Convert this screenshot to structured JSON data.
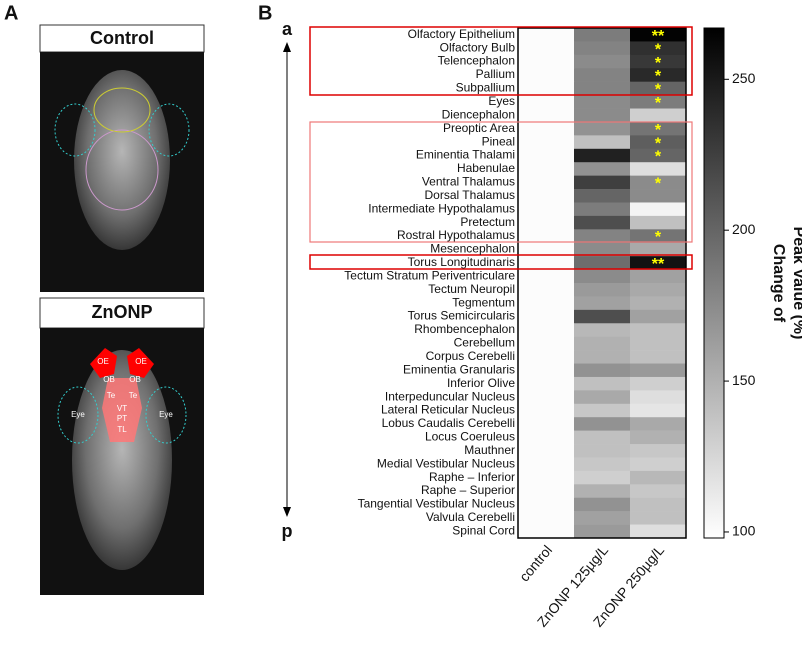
{
  "panel_labels": [
    "A",
    "B"
  ],
  "panel_a": {
    "images": [
      {
        "title": "Control"
      },
      {
        "title": "ZnONP",
        "labels": [
          "OE",
          "OE",
          "OB",
          "OB",
          "Te",
          "Te",
          "VT",
          "PT",
          "TL",
          "Eye",
          "Eye"
        ]
      }
    ]
  },
  "chart_data": {
    "type": "heatmap",
    "axis_labels": {
      "top": "a",
      "bottom": "p"
    },
    "columns": [
      "control",
      "ZnONP 125µg/L",
      "ZnONP 250µg/L"
    ],
    "rows": [
      "Olfactory Epithelium",
      "Olfactory Bulb",
      "Telencephalon",
      "Pallium",
      "Subpallium",
      "Eyes",
      "Diencephalon",
      "Preoptic Area",
      "Pineal",
      "Eminentia Thalami",
      "Habenulae",
      "Ventral Thalamus",
      "Dorsal Thalamus",
      "Intermediate Hypothalamus",
      "Pretectum",
      "Rostral Hypothalamus",
      "Mesencephalon",
      "Torus Longitudinaris",
      "Tectum Stratum Periventriculare",
      "Tectum Neuropil",
      "Tegmentum",
      "Torus Semicircularis",
      "Rhombencephalon",
      "Cerebellum",
      "Corpus Cerebelli",
      "Eminentia Granularis",
      "Inferior Olive",
      "Interpeduncular Nucleus",
      "Lateral Reticular Nucleus",
      "Lobus Caudalis Cerebelli",
      "Locus Coeruleus",
      "Mauthner",
      "Medial Vestibular Nucleus",
      "Raphe – Inferior",
      "Raphe – Superior",
      "Tangential Vestibular Nucleus",
      "Valvula Cerebelli",
      "Spinal Cord"
    ],
    "values": [
      [
        100,
        185,
        265
      ],
      [
        100,
        180,
        235
      ],
      [
        100,
        175,
        230
      ],
      [
        100,
        180,
        240
      ],
      [
        100,
        180,
        200
      ],
      [
        100,
        175,
        185
      ],
      [
        100,
        175,
        130
      ],
      [
        100,
        170,
        190
      ],
      [
        100,
        140,
        205
      ],
      [
        100,
        245,
        200
      ],
      [
        100,
        170,
        120
      ],
      [
        100,
        225,
        175
      ],
      [
        100,
        200,
        175
      ],
      [
        100,
        185,
        105
      ],
      [
        100,
        215,
        140
      ],
      [
        100,
        180,
        190
      ],
      [
        100,
        175,
        155
      ],
      [
        100,
        195,
        255
      ],
      [
        100,
        175,
        160
      ],
      [
        100,
        165,
        155
      ],
      [
        100,
        160,
        150
      ],
      [
        100,
        215,
        160
      ],
      [
        100,
        145,
        140
      ],
      [
        100,
        150,
        140
      ],
      [
        100,
        150,
        140
      ],
      [
        100,
        170,
        165
      ],
      [
        100,
        140,
        130
      ],
      [
        100,
        155,
        120
      ],
      [
        100,
        135,
        115
      ],
      [
        100,
        170,
        155
      ],
      [
        100,
        140,
        150
      ],
      [
        100,
        140,
        135
      ],
      [
        100,
        135,
        130
      ],
      [
        100,
        130,
        145
      ],
      [
        100,
        150,
        135
      ],
      [
        100,
        170,
        140
      ],
      [
        100,
        160,
        140
      ],
      [
        100,
        165,
        120
      ]
    ],
    "annotations": [
      "**",
      "*",
      "*",
      "*",
      "*",
      "*",
      null,
      "*",
      "*",
      "*",
      null,
      "*",
      null,
      null,
      null,
      "*",
      null,
      "**",
      null,
      null,
      null,
      null,
      null,
      null,
      null,
      null,
      null,
      null,
      null,
      null,
      null,
      null,
      null,
      null,
      null,
      null,
      null,
      null
    ],
    "annotation_color": "#ffff00",
    "colormap": [
      "#ffffff",
      "#000000"
    ],
    "clim": [
      98,
      267
    ],
    "colorbar_ticks": [
      100,
      150,
      200,
      250
    ],
    "colorbar_label": [
      "Change of",
      "Peak Value (%)"
    ]
  }
}
